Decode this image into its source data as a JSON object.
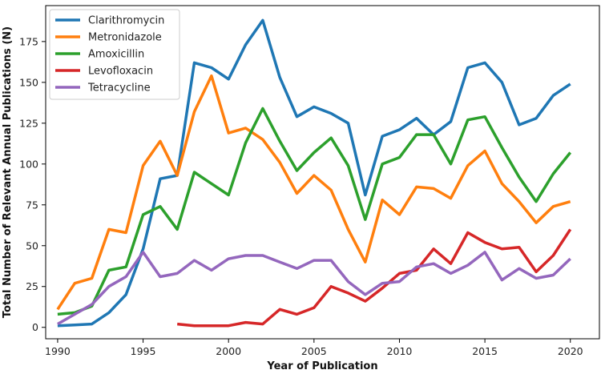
{
  "chart_data": {
    "type": "line",
    "title": "",
    "xlabel": "Year of Publication",
    "ylabel": "Total Number of Relevant Annual Publications (N)",
    "xlim": [
      1989.3,
      2021.7
    ],
    "ylim": [
      -7,
      197
    ],
    "xticks": [
      1990,
      1995,
      2000,
      2005,
      2010,
      2015,
      2020
    ],
    "yticks": [
      0,
      25,
      50,
      75,
      100,
      125,
      150,
      175
    ],
    "grid": false,
    "legend_position": "top-left",
    "series": [
      {
        "name": "Clarithromycin",
        "color": "#1f77b4",
        "x": [
          1990,
          1991,
          1992,
          1993,
          1994,
          1995,
          1996,
          1997,
          1998,
          1999,
          2000,
          2001,
          2002,
          2003,
          2004,
          2005,
          2006,
          2007,
          2008,
          2009,
          2010,
          2011,
          2012,
          2013,
          2014,
          2015,
          2016,
          2017,
          2018,
          2019,
          2020
        ],
        "values": [
          1,
          1.5,
          2,
          9,
          20,
          48,
          91,
          93,
          162,
          159,
          152,
          173,
          188,
          153,
          129,
          135,
          131,
          125,
          81,
          117,
          121,
          128,
          118,
          126,
          159,
          162,
          150,
          124,
          128,
          142,
          149
        ]
      },
      {
        "name": "Metronidazole",
        "color": "#ff7f0e",
        "x": [
          1990,
          1991,
          1992,
          1993,
          1994,
          1995,
          1996,
          1997,
          1998,
          1999,
          2000,
          2001,
          2002,
          2003,
          2004,
          2005,
          2006,
          2007,
          2008,
          2009,
          2010,
          2011,
          2012,
          2013,
          2014,
          2015,
          2016,
          2017,
          2018,
          2019,
          2020
        ],
        "values": [
          11,
          27,
          30,
          60,
          58,
          99,
          114,
          93,
          132,
          154,
          119,
          122,
          115,
          101,
          82,
          93,
          84,
          60,
          40,
          78,
          69,
          86,
          85,
          79,
          99,
          108,
          88,
          77,
          64,
          74,
          77
        ]
      },
      {
        "name": "Amoxicillin",
        "color": "#2ca02c",
        "x": [
          1990,
          1991,
          1992,
          1993,
          1994,
          1995,
          1996,
          1997,
          1998,
          1999,
          2000,
          2001,
          2002,
          2003,
          2004,
          2005,
          2006,
          2007,
          2008,
          2009,
          2010,
          2011,
          2012,
          2013,
          2014,
          2015,
          2016,
          2017,
          2018,
          2019,
          2020
        ],
        "values": [
          8,
          9,
          13,
          35,
          37,
          69,
          74,
          60,
          95,
          88,
          81,
          113,
          134,
          114,
          96,
          107,
          116,
          99,
          66,
          100,
          104,
          118,
          118,
          100,
          127,
          129,
          110,
          92,
          77,
          94,
          107
        ]
      },
      {
        "name": "Levofloxacin",
        "color": "#d62728",
        "x": [
          1997,
          1998,
          1999,
          2000,
          2001,
          2002,
          2003,
          2004,
          2005,
          2006,
          2007,
          2008,
          2009,
          2010,
          2011,
          2012,
          2013,
          2014,
          2015,
          2016,
          2017,
          2018,
          2019,
          2020
        ],
        "values": [
          2,
          1,
          1,
          1,
          3,
          2,
          11,
          8,
          12,
          25,
          21,
          16,
          24,
          33,
          35,
          48,
          39,
          58,
          52,
          48,
          49,
          34,
          44,
          60
        ]
      },
      {
        "name": "Tetracycline",
        "color": "#9467bd",
        "x": [
          1990,
          1991,
          1992,
          1993,
          1994,
          1995,
          1996,
          1997,
          1998,
          1999,
          2000,
          2001,
          2002,
          2003,
          2004,
          2005,
          2006,
          2007,
          2008,
          2009,
          2010,
          2011,
          2012,
          2013,
          2014,
          2015,
          2016,
          2017,
          2018,
          2019,
          2020
        ],
        "values": [
          2,
          8,
          14,
          25,
          31,
          46,
          31,
          33,
          41,
          35,
          42,
          44,
          44,
          40,
          36,
          41,
          41,
          28,
          20,
          27,
          28,
          37,
          39,
          33,
          38,
          46,
          29,
          36,
          30,
          32,
          42
        ]
      }
    ]
  }
}
